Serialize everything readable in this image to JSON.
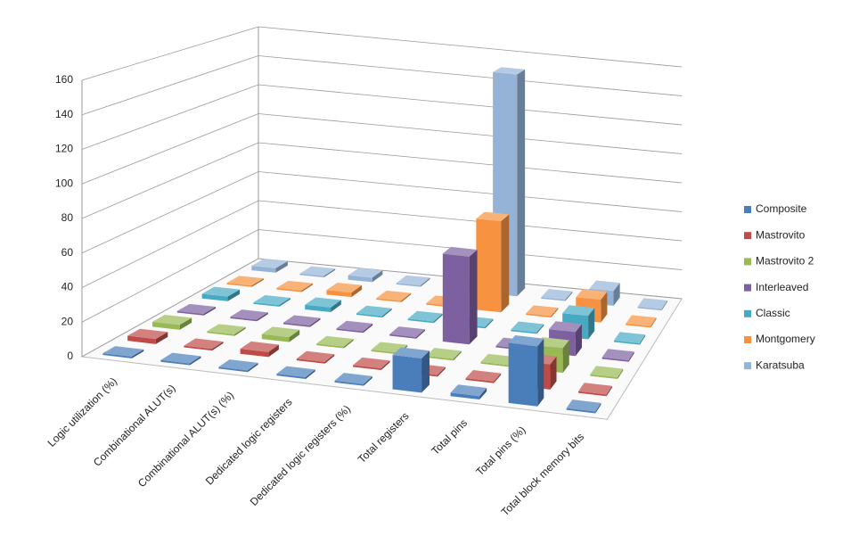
{
  "chart_data": {
    "type": "bar",
    "categories": [
      "Logic utilization (%)",
      "Combinational ALUT(s)",
      "Combinational ALUT(s) (%)",
      "Dedicated logic registers",
      "Dedicated logic registers (%)",
      "Total registers",
      "Total pins",
      "Total pins (%)",
      "Total block memory bits"
    ],
    "series": [
      {
        "name": "Composite",
        "color": "#4a7ebb",
        "values": [
          1,
          1,
          1,
          1,
          1,
          20,
          2,
          35,
          1
        ]
      },
      {
        "name": "Mastrovito",
        "color": "#be4b48",
        "values": [
          3,
          1,
          3,
          1,
          1,
          1,
          1,
          15,
          1
        ]
      },
      {
        "name": "Mastrovito 2",
        "color": "#98b954",
        "values": [
          3,
          1,
          3,
          1,
          1,
          1,
          1,
          15,
          1
        ]
      },
      {
        "name": "Interleaved",
        "color": "#7d60a0",
        "values": [
          1,
          1,
          1,
          1,
          1,
          55,
          1,
          15,
          1
        ]
      },
      {
        "name": "Classic",
        "color": "#46aac5",
        "values": [
          3,
          1,
          3,
          1,
          1,
          1,
          1,
          15,
          1
        ]
      },
      {
        "name": "Montgomery",
        "color": "#f69240",
        "values": [
          1,
          1,
          3,
          1,
          1,
          60,
          1,
          15,
          1
        ]
      },
      {
        "name": "Karatsuba",
        "color": "#95b3d7",
        "values": [
          3,
          1,
          3,
          1,
          1,
          150,
          1,
          10,
          1
        ]
      }
    ],
    "ylim": [
      0,
      160
    ],
    "yticks": [
      0,
      20,
      40,
      60,
      80,
      100,
      120,
      140,
      160
    ],
    "grid": true,
    "legend": "right"
  }
}
